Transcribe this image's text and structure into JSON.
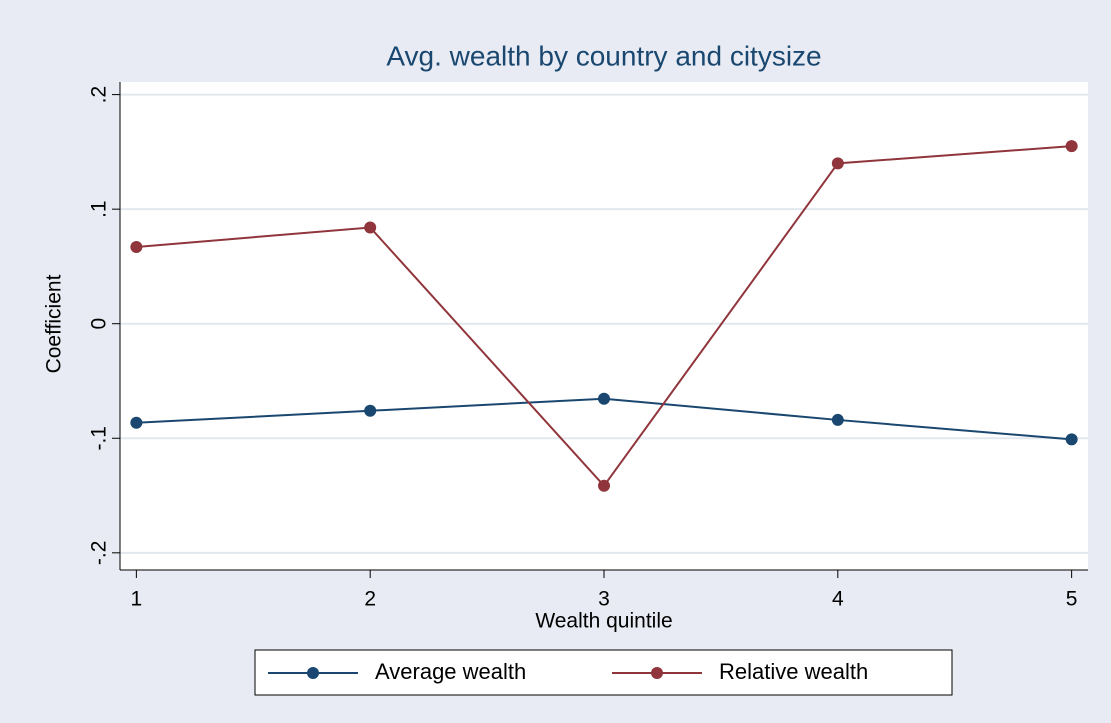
{
  "chart_data": {
    "type": "line",
    "title": "Avg. wealth by country and citysize",
    "x_label": "Wealth quintile",
    "y_label": "Coefficient",
    "x": [
      1,
      2,
      3,
      4,
      5
    ],
    "series": [
      {
        "name": "Average wealth",
        "color": "#1a476f",
        "values": [
          -0.0865,
          -0.076,
          -0.0655,
          -0.084,
          -0.101
        ]
      },
      {
        "name": "Relative wealth",
        "color": "#90353b",
        "values": [
          0.067,
          0.084,
          -0.1415,
          0.14,
          0.155
        ]
      }
    ],
    "xlim": [
      0.93,
      5.07
    ],
    "ylim": [
      -0.215,
      0.211
    ],
    "xticks": [
      1,
      2,
      3,
      4,
      5
    ],
    "yticks": [
      {
        "value": -0.2,
        "label": "-.2"
      },
      {
        "value": -0.1,
        "label": "-.1"
      },
      0,
      {
        "value": 0.1,
        "label": ".1"
      },
      {
        "value": 0.2,
        "label": ".2"
      }
    ],
    "grid": true,
    "legend": "bottom"
  }
}
